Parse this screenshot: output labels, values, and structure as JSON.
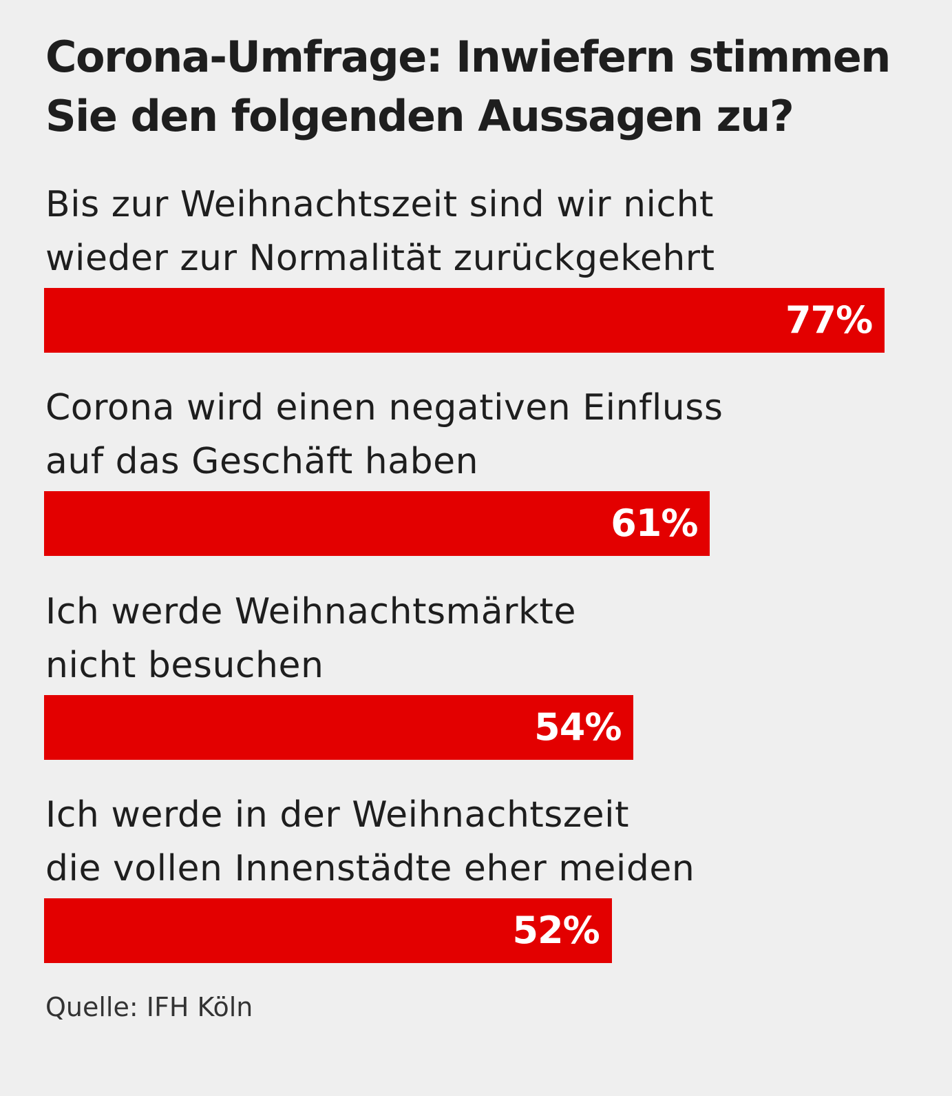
{
  "chart_data": {
    "type": "bar",
    "orientation": "horizontal",
    "title": "Corona-Umfrage: Inwiefern stimmen Sie den folgenden Aussagen zu?",
    "title_lines": [
      "Corona-Umfrage: Inwiefern stimmen",
      "Sie den folgenden Aussagen zu?"
    ],
    "categories": [
      [
        "Bis zur Weihnachtszeit sind wir nicht",
        "wieder zur Normalität zurückgekehrt"
      ],
      [
        "Corona wird einen negativen Einfluss",
        "auf das Geschäft haben"
      ],
      [
        "Ich werde Weihnachtsmärkte",
        "nicht besuchen"
      ],
      [
        "Ich werde in der Weihnachtszeit",
        "die vollen Innenstädte eher meiden"
      ]
    ],
    "values": [
      77,
      61,
      54,
      52
    ],
    "value_labels": [
      "77%",
      "61%",
      "54%",
      "52%"
    ],
    "unit": "%",
    "xlim": [
      0,
      100
    ],
    "grid": false,
    "bar_color": "#e30000",
    "background_color": "#efefef",
    "source": "Quelle: IFH Köln"
  }
}
